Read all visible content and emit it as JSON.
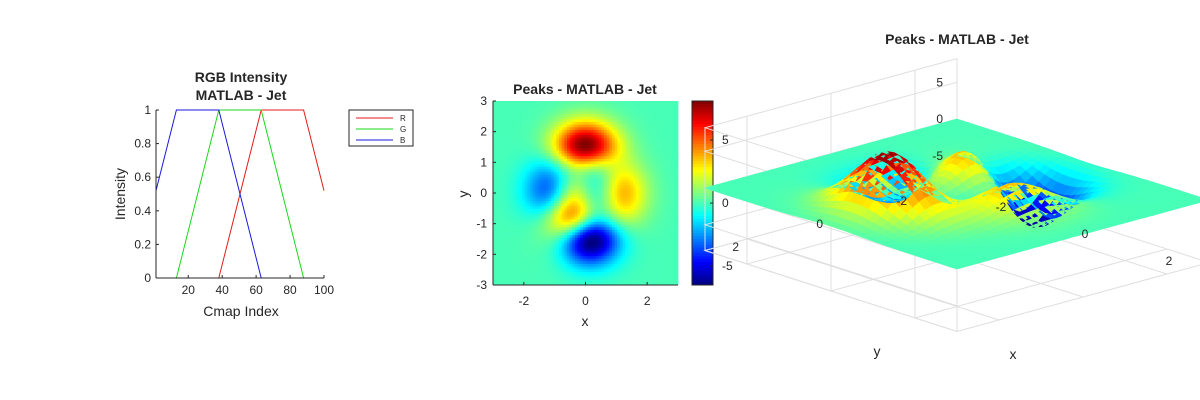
{
  "chart_data": [
    {
      "type": "line",
      "title": "RGB Intensity",
      "subtitle": "MATLAB - Jet",
      "xlabel": "Cmap Index",
      "ylabel": "Intensity",
      "xlim": [
        1,
        100
      ],
      "ylim": [
        0,
        1
      ],
      "xticks": [
        "20",
        "40",
        "60",
        "80",
        "100"
      ],
      "yticks": [
        "0",
        "0.2",
        "0.4",
        "0.6",
        "0.8",
        "1"
      ],
      "legend_position": "outside-right",
      "series": [
        {
          "name": "R",
          "color": "#e41a1c",
          "x": [
            1,
            38,
            63,
            88,
            100
          ],
          "y": [
            0,
            0,
            1,
            1,
            0.52
          ]
        },
        {
          "name": "G",
          "color": "#19d819",
          "x": [
            1,
            13,
            38,
            63,
            88,
            100
          ],
          "y": [
            0,
            0,
            1,
            1,
            0,
            0
          ]
        },
        {
          "name": "B",
          "color": "#1a1ad8",
          "x": [
            1,
            13,
            38,
            63,
            100
          ],
          "y": [
            0.52,
            1,
            1,
            0,
            0
          ]
        }
      ]
    },
    {
      "type": "heatmap",
      "title": "Peaks - MATLAB - Jet",
      "xlabel": "x",
      "ylabel": "y",
      "xlim": [
        -3,
        3
      ],
      "ylim": [
        -3,
        3
      ],
      "xticks": [
        "-2",
        "0",
        "2"
      ],
      "yticks": [
        "-3",
        "-2",
        "-1",
        "0",
        "1",
        "2",
        "3"
      ],
      "colorbar_ticks": [
        "-5",
        "0",
        "5"
      ],
      "clim": [
        -6.5,
        8.1
      ],
      "function": "peaks",
      "colormap": "jet"
    },
    {
      "type": "surface",
      "title": "Peaks - MATLAB - Jet",
      "xlabel": "x",
      "ylabel": "y",
      "xticks": [
        "-2",
        "0",
        "2"
      ],
      "yticks": [
        "-2",
        "0",
        "2"
      ],
      "zticks": [
        "-5",
        "0",
        "5"
      ],
      "zlim": [
        -6.5,
        8.1
      ],
      "function": "peaks",
      "colormap": "jet",
      "grid": true
    }
  ]
}
